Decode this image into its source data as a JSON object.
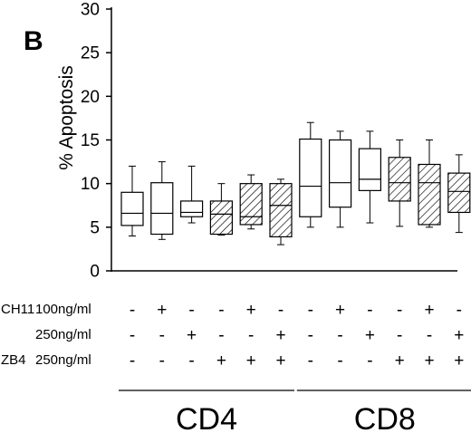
{
  "panel_label": "B",
  "chart_data": {
    "type": "box",
    "title": "",
    "ylabel": "% Apoptosis",
    "xlabel": "",
    "ylim": [
      0,
      30
    ],
    "yticks": [
      0,
      5,
      10,
      15,
      20,
      25,
      30
    ],
    "ytick_labels": [
      "0",
      "5",
      "10",
      "15",
      "20",
      "25",
      "30"
    ],
    "grid": false,
    "legend": "none",
    "colors": {
      "stroke": "#000000",
      "background": "#ffffff"
    },
    "boxes": [
      {
        "group": "CD4",
        "hatched": false,
        "whisker_low": 4.0,
        "q1": 5.2,
        "median": 6.6,
        "q3": 9.0,
        "whisker_high": 12.0
      },
      {
        "group": "CD4",
        "hatched": false,
        "whisker_low": 3.6,
        "q1": 4.2,
        "median": 6.6,
        "q3": 10.1,
        "whisker_high": 12.5
      },
      {
        "group": "CD4",
        "hatched": false,
        "whisker_low": 5.5,
        "q1": 6.2,
        "median": 6.7,
        "q3": 8.0,
        "whisker_high": 12.0
      },
      {
        "group": "CD4",
        "hatched": true,
        "whisker_low": 4.1,
        "q1": 4.2,
        "median": 6.5,
        "q3": 8.0,
        "whisker_high": 10.0
      },
      {
        "group": "CD4",
        "hatched": true,
        "whisker_low": 4.8,
        "q1": 5.3,
        "median": 6.2,
        "q3": 10.0,
        "whisker_high": 11.0
      },
      {
        "group": "CD4",
        "hatched": true,
        "whisker_low": 3.0,
        "q1": 3.9,
        "median": 7.5,
        "q3": 10.0,
        "whisker_high": 10.5
      },
      {
        "group": "CD8",
        "hatched": false,
        "whisker_low": 5.0,
        "q1": 6.2,
        "median": 9.7,
        "q3": 15.1,
        "whisker_high": 17.0
      },
      {
        "group": "CD8",
        "hatched": false,
        "whisker_low": 5.0,
        "q1": 7.3,
        "median": 10.1,
        "q3": 15.0,
        "whisker_high": 16.0
      },
      {
        "group": "CD8",
        "hatched": false,
        "whisker_low": 5.5,
        "q1": 9.2,
        "median": 10.5,
        "q3": 14.0,
        "whisker_high": 16.0
      },
      {
        "group": "CD8",
        "hatched": true,
        "whisker_low": 5.1,
        "q1": 8.0,
        "median": 10.1,
        "q3": 13.0,
        "whisker_high": 15.0
      },
      {
        "group": "CD8",
        "hatched": true,
        "whisker_low": 5.0,
        "q1": 5.3,
        "median": 10.1,
        "q3": 12.2,
        "whisker_high": 15.0
      },
      {
        "group": "CD8",
        "hatched": true,
        "whisker_low": 4.4,
        "q1": 6.7,
        "median": 9.1,
        "q3": 11.2,
        "whisker_high": 13.3
      }
    ],
    "condition_rows": [
      {
        "agent": "CH11",
        "dose": "100ng/ml",
        "signs": [
          "-",
          "+",
          "-",
          "-",
          "+",
          "-",
          "-",
          "+",
          "-",
          "-",
          "+",
          "-"
        ]
      },
      {
        "agent": "",
        "dose": "250ng/ml",
        "signs": [
          "-",
          "-",
          "+",
          "-",
          "-",
          "+",
          "-",
          "-",
          "+",
          "-",
          "-",
          "+"
        ]
      },
      {
        "agent": "ZB4",
        "dose": "250ng/ml",
        "signs": [
          "-",
          "-",
          "-",
          "+",
          "+",
          "+",
          "-",
          "-",
          "-",
          "+",
          "+",
          "+"
        ]
      }
    ],
    "groups": [
      {
        "label": "CD4",
        "from": 0,
        "to": 5
      },
      {
        "label": "CD8",
        "from": 6,
        "to": 11
      }
    ]
  }
}
